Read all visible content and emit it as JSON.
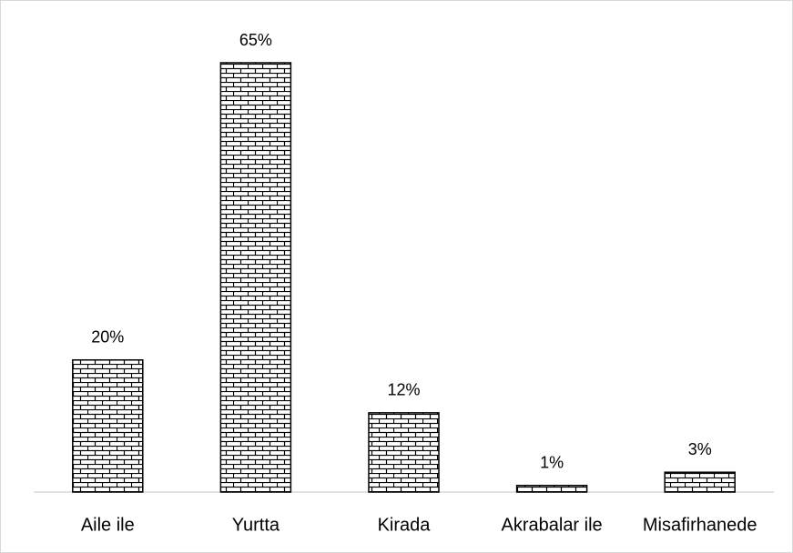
{
  "chart_data": {
    "type": "bar",
    "categories": [
      "Aile ile",
      "Yurtta",
      "Kirada",
      "Akrabalar ile",
      "Misafirhanede"
    ],
    "values": [
      20,
      65,
      12,
      1,
      3
    ],
    "value_labels": [
      "20%",
      "65%",
      "12%",
      "1%",
      "3%"
    ],
    "color": "#000000"
  }
}
